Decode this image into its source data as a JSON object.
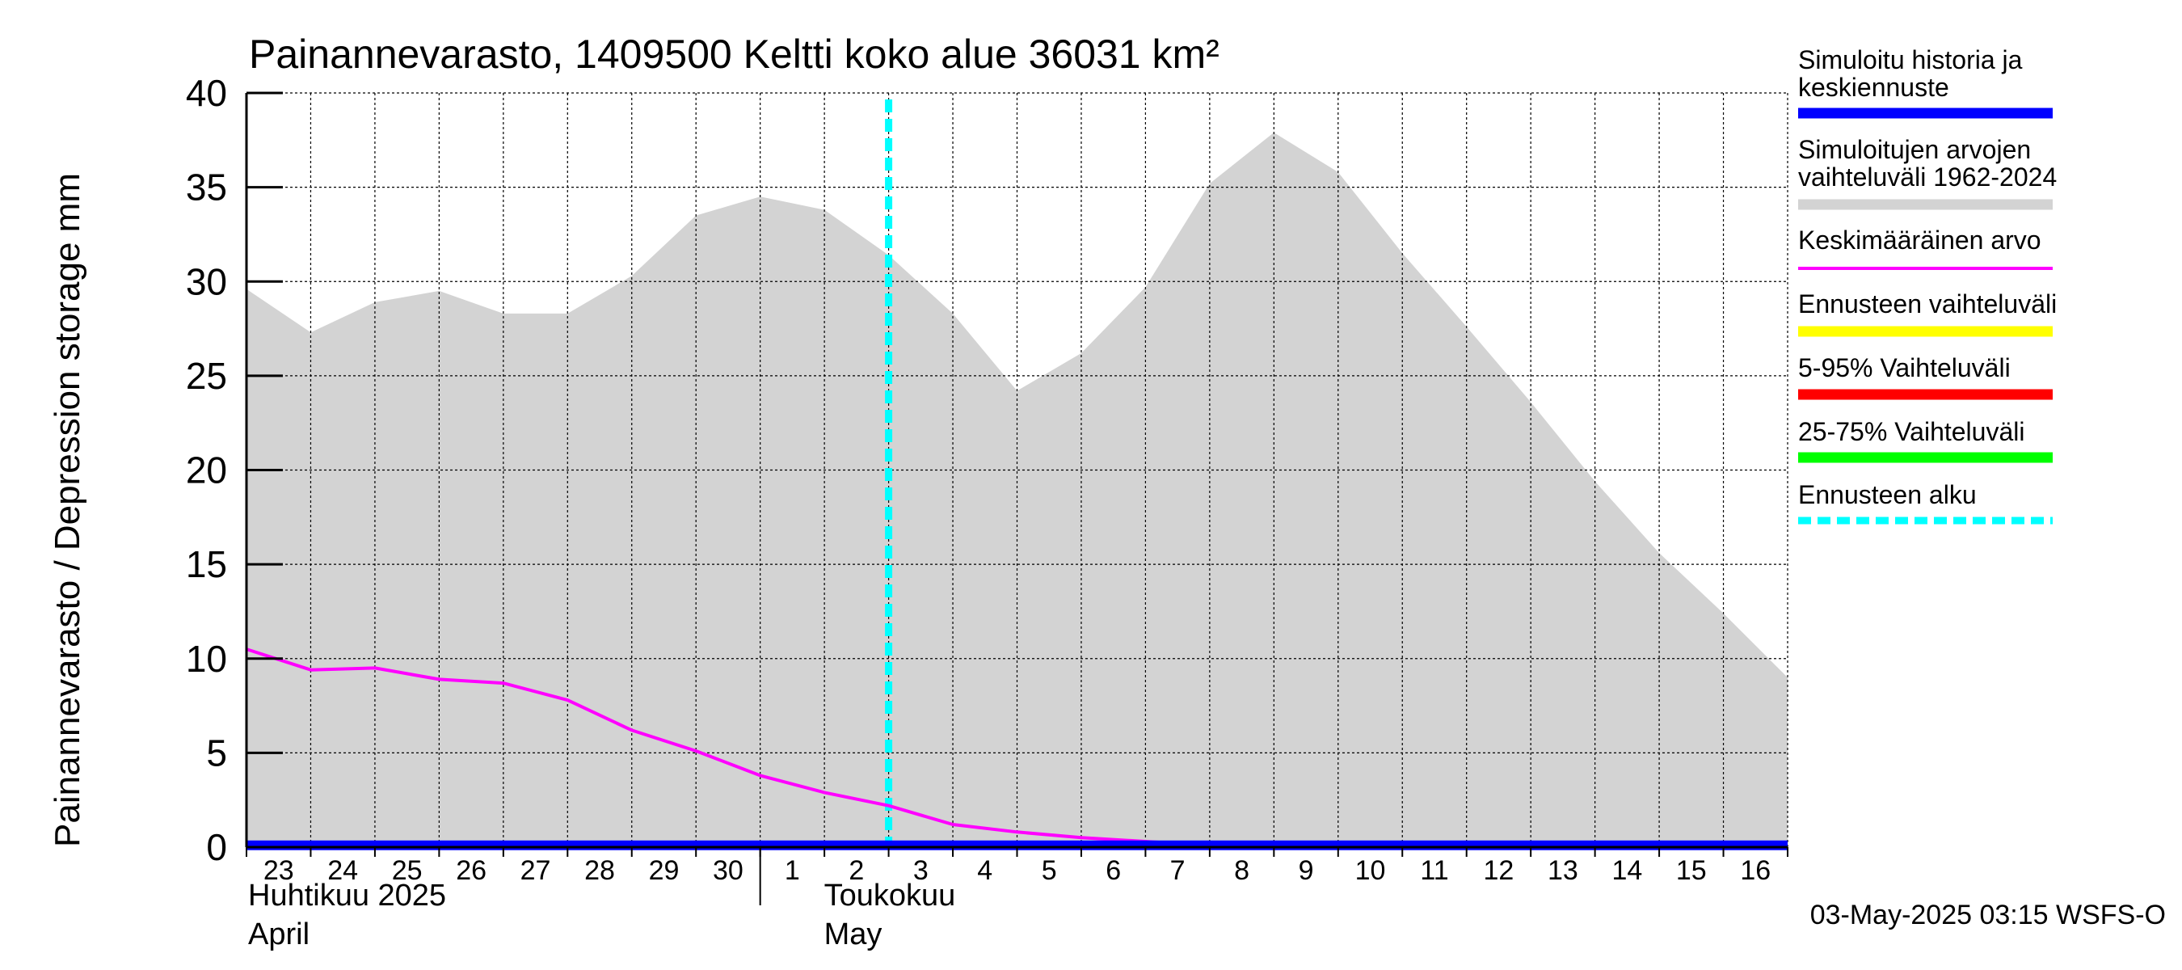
{
  "chart_data": {
    "type": "area",
    "title": "Painannevarasto, 1409500 Keltti koko alue 36031 km²",
    "ylabel": "Painannevarasto / Depression storage    mm",
    "ylim": [
      0,
      40
    ],
    "yticks": [
      0,
      5,
      10,
      15,
      20,
      25,
      30,
      35,
      40
    ],
    "x_start": "2025-04-23",
    "x_end": "2025-05-16",
    "x_tick_labels": [
      "23",
      "24",
      "25",
      "26",
      "27",
      "28",
      "29",
      "30",
      "1",
      "2",
      "3",
      "4",
      "5",
      "6",
      "7",
      "8",
      "9",
      "10",
      "11",
      "12",
      "13",
      "14",
      "15",
      "16"
    ],
    "month_labels": [
      {
        "fi": "Huhtikuu  2025",
        "en": "April"
      },
      {
        "fi": "Toukokuu",
        "en": "May"
      }
    ],
    "grid": true,
    "legend_position": "right",
    "forecast_start": "2025-05-03T00:00",
    "series": [
      {
        "name": "Simuloitujen arvojen vaihteluväli 1962-2024",
        "kind": "band",
        "color": "#d3d3d3",
        "x": [
          "2025-04-23",
          "2025-04-24",
          "2025-04-25",
          "2025-04-26",
          "2025-04-27",
          "2025-04-28",
          "2025-04-29",
          "2025-04-30",
          "2025-05-01",
          "2025-05-02",
          "2025-05-03",
          "2025-05-04",
          "2025-05-05",
          "2025-05-06",
          "2025-05-07",
          "2025-05-08",
          "2025-05-09",
          "2025-05-10",
          "2025-05-11",
          "2025-05-12",
          "2025-05-13",
          "2025-05-14",
          "2025-05-15",
          "2025-05-16",
          "2025-05-17"
        ],
        "upper": [
          29.6,
          27.3,
          28.9,
          29.5,
          28.3,
          28.3,
          30.3,
          33.5,
          34.5,
          33.8,
          31.4,
          28.3,
          24.2,
          26.2,
          29.7,
          35.2,
          37.9,
          35.8,
          31.5,
          27.6,
          23.6,
          19.4,
          15.6,
          12.4,
          9.0
        ],
        "lower": [
          0,
          0,
          0,
          0,
          0,
          0,
          0,
          0,
          0,
          0,
          0,
          0,
          0,
          0,
          0,
          0,
          0,
          0,
          0,
          0,
          0,
          0,
          0,
          0,
          0
        ]
      },
      {
        "name": "Keskimääräinen arvo",
        "kind": "line",
        "color": "#ff00ff",
        "x": [
          "2025-04-23",
          "2025-04-24",
          "2025-04-25",
          "2025-04-26",
          "2025-04-27",
          "2025-04-28",
          "2025-04-29",
          "2025-04-30",
          "2025-05-01",
          "2025-05-02",
          "2025-05-03",
          "2025-05-04",
          "2025-05-05",
          "2025-05-06",
          "2025-05-07",
          "2025-05-08",
          "2025-05-09",
          "2025-05-10",
          "2025-05-11",
          "2025-05-12",
          "2025-05-13",
          "2025-05-14",
          "2025-05-15",
          "2025-05-16",
          "2025-05-17"
        ],
        "values": [
          10.5,
          9.4,
          9.5,
          8.9,
          8.7,
          7.8,
          6.2,
          5.1,
          3.8,
          2.9,
          2.2,
          1.2,
          0.8,
          0.5,
          0.3,
          0.1,
          0.0,
          0.0,
          0.0,
          0.0,
          0.0,
          0.0,
          0.0,
          0.0,
          0.0
        ]
      },
      {
        "name": "Simuloitu historia ja keskiennuste",
        "kind": "line",
        "color": "#0000ff",
        "x": [
          "2025-04-23",
          "2025-05-17"
        ],
        "values": [
          0.1,
          0.1
        ]
      }
    ],
    "legend": [
      {
        "label": "Simuloitu historia ja keskiennuste",
        "color": "#0000ff",
        "style": "thick"
      },
      {
        "label": "Simuloitujen arvojen vaihteluväli 1962-2024",
        "color": "#d3d3d3",
        "style": "thick"
      },
      {
        "label": "Keskimääräinen arvo",
        "color": "#ff00ff",
        "style": "thin"
      },
      {
        "label": "Ennusteen vaihteluväli",
        "color": "#ffff00",
        "style": "thick"
      },
      {
        "label": "5-95% Vaihteluväli",
        "color": "#ff0000",
        "style": "thick"
      },
      {
        "label": "25-75% Vaihteluväli",
        "color": "#00ff00",
        "style": "thick"
      },
      {
        "label": "Ennusteen alku",
        "color": "#00ffff",
        "style": "dashed"
      }
    ],
    "footer": "03-May-2025 03:15 WSFS-O"
  }
}
